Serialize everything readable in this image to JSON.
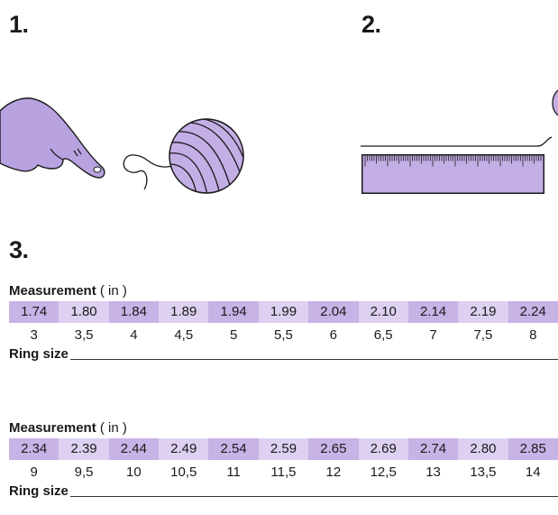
{
  "steps": {
    "one": "1.",
    "two": "2.",
    "three": "3."
  },
  "tables": [
    {
      "title": "Measurement",
      "unit": "( in )",
      "measurements": [
        "1.74",
        "1.80",
        "1.84",
        "1.89",
        "1.94",
        "1.99",
        "2.04",
        "2.10",
        "2.14",
        "2.19",
        "2.24"
      ],
      "sizes": [
        "3",
        "3,5",
        "4",
        "4,5",
        "5",
        "5,5",
        "6",
        "6,5",
        "7",
        "7,5",
        "8"
      ],
      "ring_label": "Ring size"
    },
    {
      "title": "Measurement",
      "unit": "( in )",
      "measurements": [
        "2.34",
        "2.39",
        "2.44",
        "2.49",
        "2.54",
        "2.59",
        "2.65",
        "2.69",
        "2.74",
        "2.80",
        "2.85"
      ],
      "sizes": [
        "9",
        "9,5",
        "10",
        "10,5",
        "11",
        "11,5",
        "12",
        "12,5",
        "13",
        "13,5",
        "14"
      ],
      "ring_label": "Ring size"
    }
  ],
  "colors": {
    "accent": "#b8a2e0",
    "cell_dark": "#c7b3e6",
    "cell_light": "#ddd0f0",
    "ink": "#1a1a1a"
  },
  "icons": [
    "pointing-hand-icon",
    "yarn-ball-icon",
    "ruler-icon"
  ]
}
